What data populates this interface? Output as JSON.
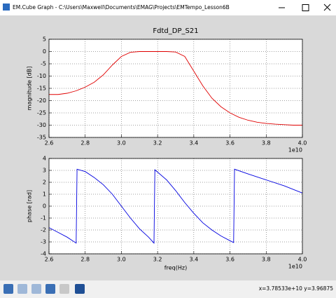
{
  "window": {
    "title": "EM.Cube Graph - C:\\Users\\Maxwell\\Documents\\EMAG\\Projects\\EMTempo_Lesson6B",
    "status": "x=3.78533e+10  y=3.96875"
  },
  "chart_data": [
    {
      "type": "line",
      "title": "Fdtd_DP_S21",
      "y_label": "magnitude [dB]",
      "x_offset_label": "1e10",
      "x": [
        2.6,
        2.65,
        2.7,
        2.75,
        2.8,
        2.85,
        2.9,
        2.95,
        3.0,
        3.05,
        3.1,
        3.15,
        3.2,
        3.25,
        3.3,
        3.35,
        3.4,
        3.45,
        3.5,
        3.55,
        3.6,
        3.65,
        3.7,
        3.75,
        3.8,
        3.85,
        3.9,
        3.95,
        4.0
      ],
      "series": [
        {
          "color": "#e00000",
          "values": [
            -17.5,
            -17.5,
            -17,
            -16,
            -14.5,
            -12.5,
            -9.5,
            -5.5,
            -2,
            -0.3,
            0,
            0,
            0,
            0,
            -0.2,
            -2,
            -8,
            -14,
            -19,
            -22.5,
            -25,
            -26.8,
            -28,
            -28.8,
            -29.3,
            -29.6,
            -29.8,
            -30,
            -30
          ]
        }
      ],
      "xlim": [
        2.6,
        4.0
      ],
      "xticks": [
        2.6,
        2.8,
        {
          "value": 3,
          "label": "3.0"
        },
        3.2,
        3.4,
        3.6,
        3.8,
        {
          "value": 4,
          "label": "4.0"
        }
      ],
      "ylim": [
        -35,
        5
      ],
      "yticks": [
        -35,
        -30,
        -25,
        -20,
        -15,
        -10,
        -5,
        0,
        5
      ],
      "grid": true
    },
    {
      "type": "line",
      "y_label": "phase [rad]",
      "x_label": "freq(Hz)",
      "x_offset_label": "1e10",
      "x": [
        2.6,
        2.65,
        2.7,
        2.75,
        2.755,
        2.8,
        2.85,
        2.9,
        2.95,
        3.0,
        3.05,
        3.1,
        3.15,
        3.18,
        3.185,
        3.25,
        3.3,
        3.35,
        3.4,
        3.45,
        3.5,
        3.55,
        3.6,
        3.62,
        3.625,
        3.7,
        3.8,
        3.9,
        4.0
      ],
      "series": [
        {
          "color": "#0000e0",
          "values": [
            -1.8,
            -2.2,
            -2.6,
            -3.1,
            3.1,
            2.9,
            2.4,
            1.8,
            1.0,
            0.0,
            -1.0,
            -1.9,
            -2.6,
            -3.1,
            3.05,
            2.2,
            1.3,
            0.3,
            -0.6,
            -1.4,
            -2.0,
            -2.5,
            -2.9,
            -3.05,
            3.1,
            2.7,
            2.2,
            1.7,
            1.1
          ]
        }
      ],
      "xlim": [
        2.6,
        4.0
      ],
      "xticks": [
        2.6,
        2.8,
        {
          "value": 3,
          "label": "3.0"
        },
        3.2,
        3.4,
        3.6,
        3.8,
        {
          "value": 4,
          "label": "4.0"
        }
      ],
      "ylim": [
        -4,
        4
      ],
      "yticks": [
        -4,
        -3,
        -2,
        -1,
        0,
        1,
        2,
        3,
        4
      ],
      "grid": true
    }
  ]
}
